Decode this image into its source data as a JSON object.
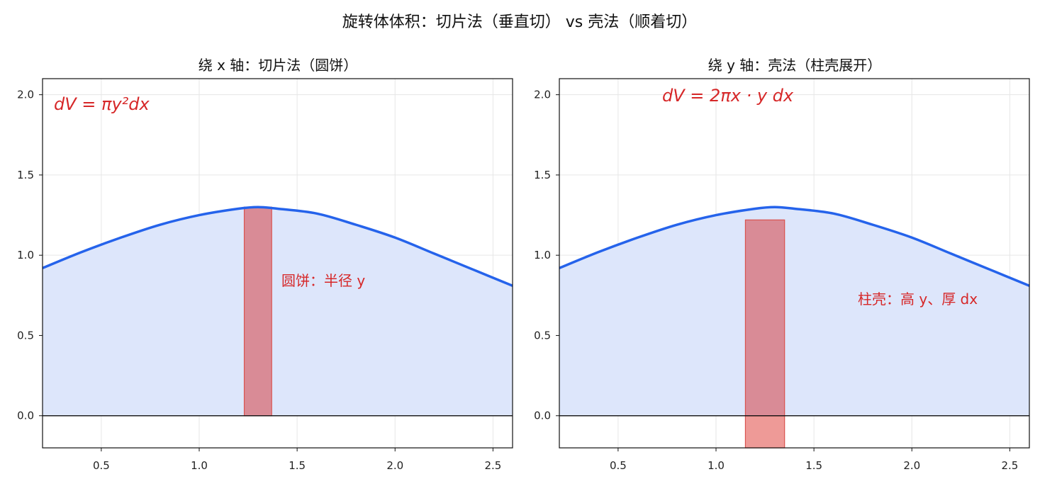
{
  "figure_title": "旋转体体积：切片法（垂直切） vs 壳法（顺着切）",
  "colors": {
    "curve": "#2563eb",
    "fill": "#dde6fb",
    "accent": "#d62728",
    "slab_fill": "#d98b96",
    "slab_edge": "#d9534f",
    "shell_below_fill": "#ee9a97",
    "grid": "#e6e6e6",
    "axis": "#111111"
  },
  "chart_data": [
    {
      "type": "area",
      "title": "绕 x 轴：切片法（圆饼）",
      "xlim": [
        0.2,
        2.6
      ],
      "ylim": [
        -0.2,
        2.1
      ],
      "grid": true,
      "xticks": [
        "0.5",
        "1.0",
        "1.5",
        "2.0",
        "2.5"
      ],
      "yticks": [
        "0.0",
        "0.5",
        "1.0",
        "1.5",
        "2.0"
      ],
      "curve": {
        "x": [
          0.2,
          0.4,
          0.6,
          0.8,
          1.0,
          1.2,
          1.3,
          1.4,
          1.6,
          1.8,
          2.0,
          2.2,
          2.4,
          2.6
        ],
        "y": [
          0.92,
          1.02,
          1.11,
          1.19,
          1.25,
          1.29,
          1.3,
          1.29,
          1.26,
          1.19,
          1.11,
          1.01,
          0.91,
          0.81
        ]
      },
      "slice": {
        "x0": 1.23,
        "x1": 1.37,
        "y0": 0.0,
        "y1": 1.3
      },
      "formula": "dV = πy²dx",
      "annotation": "圆饼：半径 y"
    },
    {
      "type": "area",
      "title": "绕 y 轴：壳法（柱壳展开）",
      "xlim": [
        0.2,
        2.6
      ],
      "ylim": [
        -0.2,
        2.1
      ],
      "grid": true,
      "xticks": [
        "0.5",
        "1.0",
        "1.5",
        "2.0",
        "2.5"
      ],
      "yticks": [
        "0.0",
        "0.5",
        "1.0",
        "1.5",
        "2.0"
      ],
      "curve": {
        "x": [
          0.2,
          0.4,
          0.6,
          0.8,
          1.0,
          1.2,
          1.3,
          1.4,
          1.6,
          1.8,
          2.0,
          2.2,
          2.4,
          2.6
        ],
        "y": [
          0.92,
          1.02,
          1.11,
          1.19,
          1.25,
          1.29,
          1.3,
          1.29,
          1.26,
          1.19,
          1.11,
          1.01,
          0.91,
          0.81
        ]
      },
      "shell": {
        "x0": 1.15,
        "x1": 1.35,
        "y0": -0.2,
        "y1": 1.22
      },
      "formula": "dV = 2πx · y dx",
      "annotation": "柱壳：高 y、厚 dx"
    }
  ]
}
